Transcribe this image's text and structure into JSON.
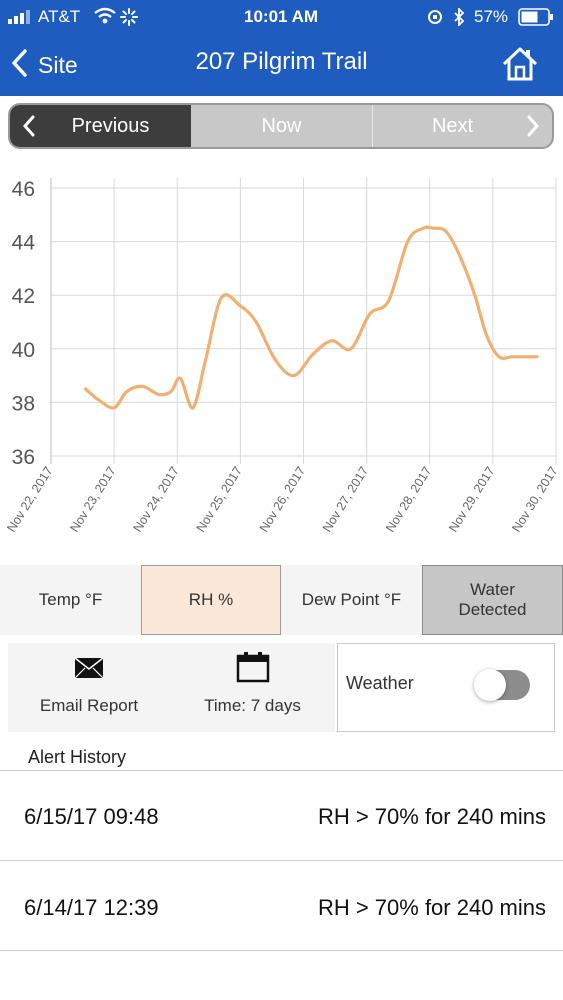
{
  "status_bar": {
    "carrier": "AT&T",
    "time": "10:01 AM",
    "battery": "57%"
  },
  "nav": {
    "back_label": "Site",
    "title": "207 Pilgrim Trail"
  },
  "segments": {
    "previous": "Previous",
    "now": "Now",
    "next": "Next"
  },
  "chart_data": {
    "type": "line",
    "title": "",
    "xlabel": "",
    "ylabel": "",
    "ylim": [
      36,
      46
    ],
    "yticks": [
      36,
      38,
      40,
      42,
      44,
      46
    ],
    "xticks": [
      "Nov 22, 2017",
      "Nov 23, 2017",
      "Nov 24, 2017",
      "Nov 25, 2017",
      "Nov 26, 2017",
      "Nov 27, 2017",
      "Nov 28, 2017",
      "Nov 29, 2017",
      "Nov 30, 2017"
    ],
    "grid": true,
    "series": [
      {
        "color": "#f0b074",
        "x": [
          0.55,
          0.75,
          1.0,
          1.2,
          1.45,
          1.7,
          1.9,
          2.05,
          2.25,
          2.45,
          2.7,
          3.0,
          3.25,
          3.55,
          3.85,
          4.15,
          4.45,
          4.75,
          5.05,
          5.35,
          5.65,
          5.9,
          6.05,
          6.25,
          6.45,
          6.7,
          6.9,
          7.1,
          7.3,
          7.5,
          7.7
        ],
        "y": [
          38.5,
          38.1,
          37.8,
          38.4,
          38.6,
          38.3,
          38.4,
          38.9,
          37.8,
          39.6,
          41.9,
          41.6,
          41.0,
          39.6,
          39.0,
          39.8,
          40.3,
          40.0,
          41.3,
          41.8,
          44.0,
          44.5,
          44.5,
          44.4,
          43.6,
          42.1,
          40.5,
          39.7,
          39.7,
          39.7,
          39.7
        ]
      }
    ]
  },
  "tabs": {
    "temp": "Temp °F",
    "rh": "RH %",
    "dew": "Dew Point °F",
    "water_line1": "Water",
    "water_line2": "Detected"
  },
  "controls": {
    "email_label": "Email Report",
    "time_label": "Time: 7 days",
    "weather_label": "Weather",
    "weather_on": false
  },
  "alerts": {
    "header": "Alert History",
    "rows": [
      {
        "time": "6/15/17 09:48",
        "desc": "RH > 70% for 240 mins"
      },
      {
        "time": "6/14/17 12:39",
        "desc": "RH > 70% for 240 mins"
      }
    ]
  },
  "colors": {
    "brand": "#1f5cc0",
    "line": "#f0b074",
    "selected_tab": "#fce8d9",
    "water_tab": "#c6c6c6"
  },
  "icons": {
    "back": "chevron-left-icon",
    "home": "home-icon",
    "email": "envelope-icon",
    "calendar": "calendar-icon"
  }
}
